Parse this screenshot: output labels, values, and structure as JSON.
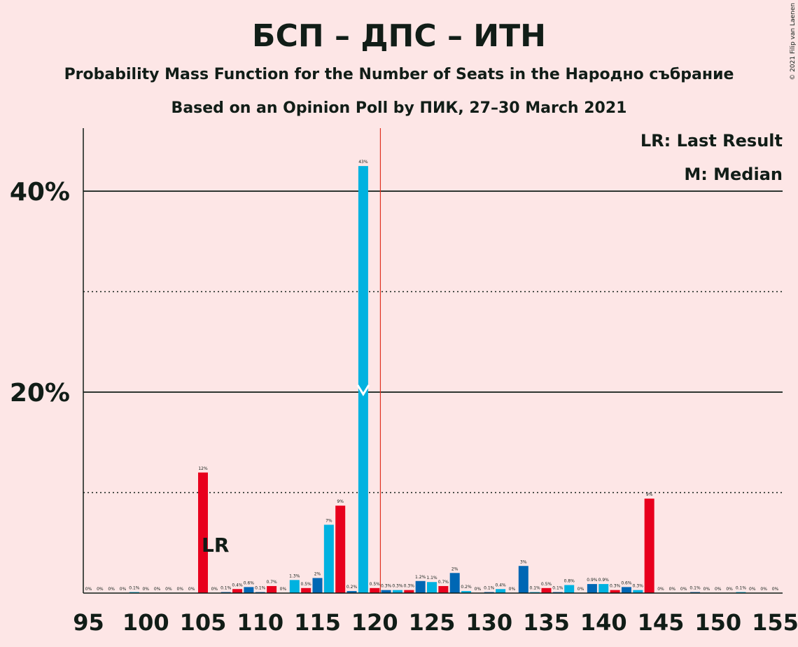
{
  "copyright": "© 2021 Filip van Laenen",
  "chart_data": {
    "type": "bar",
    "title": "БСП – ДПС – ИТН",
    "subtitle": "Probability Mass Function for the Number of Seats in the Народно събрание",
    "subtitle2": "Based on an Opinion Poll by ПИК, 27–30 March 2021",
    "legend": [
      "LR: Last Result",
      "M: Median"
    ],
    "legend_position": "top-right",
    "x_ticks": [
      "95",
      "100",
      "105",
      "110",
      "115",
      "120",
      "125",
      "130",
      "135",
      "140",
      "145",
      "150",
      "155"
    ],
    "y_ticks": [
      "20%",
      "40%"
    ],
    "ylim": [
      0,
      46.5
    ],
    "xlim": [
      94.5,
      155.5
    ],
    "grid": "solid lines at 20% and 40%, dotted lines at 10% and 30%",
    "majority_line": 120.5,
    "last_result": {
      "x": 105,
      "label": "LR"
    },
    "median": 119,
    "colors": {
      "red": "#E8001D",
      "cyan": "#00B2E0",
      "blue": "#0067B4",
      "majority": "#E03020",
      "grid": "#111D17",
      "text": "#111D17"
    },
    "bars": [
      {
        "x": 95,
        "value": 0,
        "label": "0%",
        "color": "red"
      },
      {
        "x": 96,
        "value": 0,
        "label": "0%",
        "color": "cyan"
      },
      {
        "x": 97,
        "value": 0,
        "label": "0%",
        "color": "blue"
      },
      {
        "x": 98,
        "value": 0,
        "label": "0%",
        "color": "red"
      },
      {
        "x": 99,
        "value": 0.1,
        "label": "0.1%",
        "color": "cyan"
      },
      {
        "x": 100,
        "value": 0,
        "label": "0%",
        "color": "blue"
      },
      {
        "x": 101,
        "value": 0,
        "label": "0%",
        "color": "red"
      },
      {
        "x": 102,
        "value": 0,
        "label": "0%",
        "color": "cyan"
      },
      {
        "x": 103,
        "value": 0,
        "label": "0%",
        "color": "blue"
      },
      {
        "x": 104,
        "value": 0,
        "label": "0%",
        "color": "red"
      },
      {
        "x": 105,
        "value": 12,
        "label": "12%",
        "color": "red"
      },
      {
        "x": 106,
        "value": 0,
        "label": "0%",
        "color": "cyan"
      },
      {
        "x": 107,
        "value": 0.1,
        "label": "0.1%",
        "color": "blue"
      },
      {
        "x": 108,
        "value": 0.4,
        "label": "0.4%",
        "color": "red"
      },
      {
        "x": 109,
        "value": 0.6,
        "label": "0.6%",
        "color": "blue"
      },
      {
        "x": 110,
        "value": 0.1,
        "label": "0.1%",
        "color": "blue"
      },
      {
        "x": 111,
        "value": 0.7,
        "label": "0.7%",
        "color": "red"
      },
      {
        "x": 112,
        "value": 0,
        "label": "0%",
        "color": "blue"
      },
      {
        "x": 113,
        "value": 1.3,
        "label": "1.3%",
        "color": "cyan"
      },
      {
        "x": 114,
        "value": 0.5,
        "label": "0.5%",
        "color": "red"
      },
      {
        "x": 115,
        "value": 1.5,
        "label": "2%",
        "color": "blue"
      },
      {
        "x": 116,
        "value": 6.8,
        "label": "7%",
        "color": "cyan"
      },
      {
        "x": 117,
        "value": 8.7,
        "label": "9%",
        "color": "red"
      },
      {
        "x": 118,
        "value": 0.2,
        "label": "0.2%",
        "color": "blue"
      },
      {
        "x": 119,
        "value": 42.5,
        "label": "43%",
        "color": "cyan"
      },
      {
        "x": 120,
        "value": 0.5,
        "label": "0.5%",
        "color": "red"
      },
      {
        "x": 121,
        "value": 0.3,
        "label": "0.3%",
        "color": "blue"
      },
      {
        "x": 122,
        "value": 0.3,
        "label": "0.3%",
        "color": "cyan"
      },
      {
        "x": 123,
        "value": 0.3,
        "label": "0.3%",
        "color": "red"
      },
      {
        "x": 124,
        "value": 1.2,
        "label": "1.2%",
        "color": "blue"
      },
      {
        "x": 125,
        "value": 1.1,
        "label": "1.1%",
        "color": "cyan"
      },
      {
        "x": 126,
        "value": 0.7,
        "label": "0.7%",
        "color": "red"
      },
      {
        "x": 127,
        "value": 2.0,
        "label": "2%",
        "color": "blue"
      },
      {
        "x": 128,
        "value": 0.2,
        "label": "0.2%",
        "color": "cyan"
      },
      {
        "x": 129,
        "value": 0,
        "label": "0%",
        "color": "red"
      },
      {
        "x": 130,
        "value": 0.1,
        "label": "0.1%",
        "color": "blue"
      },
      {
        "x": 131,
        "value": 0.4,
        "label": "0.4%",
        "color": "cyan"
      },
      {
        "x": 132,
        "value": 0,
        "label": "0%",
        "color": "red"
      },
      {
        "x": 133,
        "value": 2.7,
        "label": "3%",
        "color": "blue"
      },
      {
        "x": 134,
        "value": 0.1,
        "label": "0.1%",
        "color": "cyan"
      },
      {
        "x": 135,
        "value": 0.5,
        "label": "0.5%",
        "color": "red"
      },
      {
        "x": 136,
        "value": 0.1,
        "label": "0.1%",
        "color": "blue"
      },
      {
        "x": 137,
        "value": 0.8,
        "label": "0.8%",
        "color": "cyan"
      },
      {
        "x": 138,
        "value": 0,
        "label": "0%",
        "color": "red"
      },
      {
        "x": 139,
        "value": 0.9,
        "label": "0.9%",
        "color": "blue"
      },
      {
        "x": 140,
        "value": 0.9,
        "label": "0.9%",
        "color": "cyan"
      },
      {
        "x": 141,
        "value": 0.3,
        "label": "0.3%",
        "color": "red"
      },
      {
        "x": 142,
        "value": 0.6,
        "label": "0.6%",
        "color": "blue"
      },
      {
        "x": 143,
        "value": 0.3,
        "label": "0.3%",
        "color": "cyan"
      },
      {
        "x": 144,
        "value": 9.4,
        "label": "9%",
        "color": "red"
      },
      {
        "x": 145,
        "value": 0,
        "label": "0%",
        "color": "blue"
      },
      {
        "x": 146,
        "value": 0,
        "label": "0%",
        "color": "cyan"
      },
      {
        "x": 147,
        "value": 0,
        "label": "0%",
        "color": "red"
      },
      {
        "x": 148,
        "value": 0.1,
        "label": "0.1%",
        "color": "blue"
      },
      {
        "x": 149,
        "value": 0,
        "label": "0%",
        "color": "cyan"
      },
      {
        "x": 150,
        "value": 0,
        "label": "0%",
        "color": "red"
      },
      {
        "x": 151,
        "value": 0,
        "label": "0%",
        "color": "blue"
      },
      {
        "x": 152,
        "value": 0.1,
        "label": "0.1%",
        "color": "cyan"
      },
      {
        "x": 153,
        "value": 0,
        "label": "0%",
        "color": "red"
      },
      {
        "x": 154,
        "value": 0,
        "label": "0%",
        "color": "blue"
      },
      {
        "x": 155,
        "value": 0,
        "label": "0%",
        "color": "cyan"
      }
    ]
  }
}
